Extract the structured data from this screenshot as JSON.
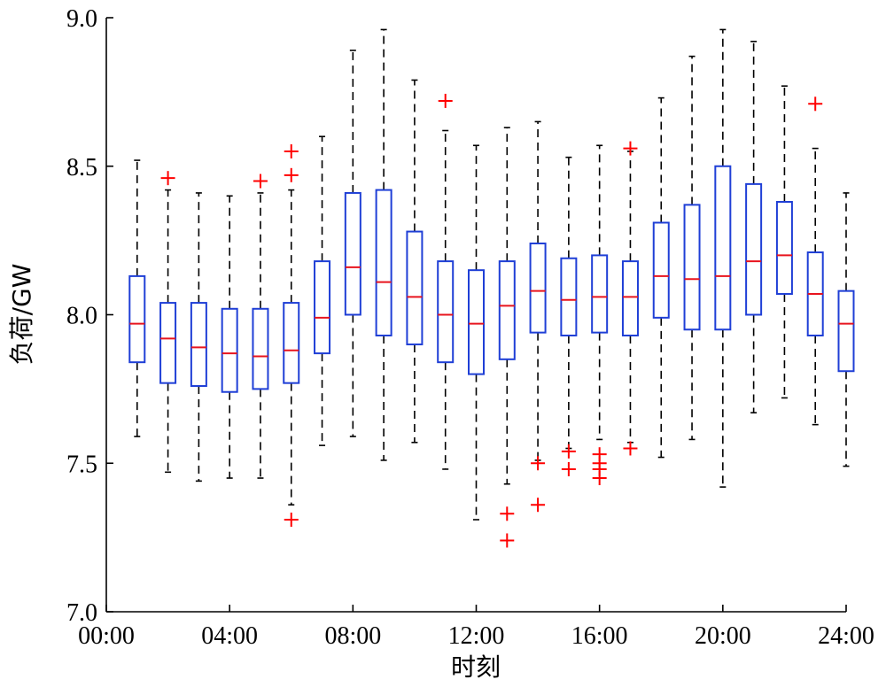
{
  "chart_data": {
    "type": "boxplot",
    "title": "",
    "xlabel": "时刻",
    "ylabel": "负荷/GW",
    "xlim": [
      0,
      24
    ],
    "ylim": [
      7.0,
      9.0
    ],
    "x_ticks": [
      0,
      4,
      8,
      12,
      16,
      20,
      24
    ],
    "x_tick_labels": [
      "00:00",
      "04:00",
      "08:00",
      "12:00",
      "16:00",
      "20:00",
      "24:00"
    ],
    "y_ticks": [
      7.0,
      7.5,
      8.0,
      8.5,
      9.0
    ],
    "y_tick_labels": [
      "7.0",
      "7.5",
      "8.0",
      "8.5",
      "9.0"
    ],
    "grid": false,
    "colors": {
      "box": "#1f3fd6",
      "median": "#e8141e",
      "whisker": "#000000",
      "outlier": "#ff0000"
    },
    "boxes": [
      {
        "x": 1,
        "whisker_low": 7.59,
        "q1": 7.84,
        "median": 7.97,
        "q3": 8.13,
        "whisker_high": 8.52,
        "outliers": []
      },
      {
        "x": 2,
        "whisker_low": 7.47,
        "q1": 7.77,
        "median": 7.92,
        "q3": 8.04,
        "whisker_high": 8.42,
        "outliers": [
          8.46
        ]
      },
      {
        "x": 3,
        "whisker_low": 7.44,
        "q1": 7.76,
        "median": 7.89,
        "q3": 8.04,
        "whisker_high": 8.41,
        "outliers": []
      },
      {
        "x": 4,
        "whisker_low": 7.45,
        "q1": 7.74,
        "median": 7.87,
        "q3": 8.02,
        "whisker_high": 8.4,
        "outliers": []
      },
      {
        "x": 5,
        "whisker_low": 7.45,
        "q1": 7.75,
        "median": 7.86,
        "q3": 8.02,
        "whisker_high": 8.41,
        "outliers": [
          8.45
        ]
      },
      {
        "x": 6,
        "whisker_low": 7.36,
        "q1": 7.77,
        "median": 7.88,
        "q3": 8.04,
        "whisker_high": 8.42,
        "outliers": [
          7.31,
          8.47,
          8.55
        ]
      },
      {
        "x": 7,
        "whisker_low": 7.56,
        "q1": 7.87,
        "median": 7.99,
        "q3": 8.18,
        "whisker_high": 8.6,
        "outliers": []
      },
      {
        "x": 8,
        "whisker_low": 7.59,
        "q1": 8.0,
        "median": 8.16,
        "q3": 8.41,
        "whisker_high": 8.89,
        "outliers": []
      },
      {
        "x": 9,
        "whisker_low": 7.51,
        "q1": 7.93,
        "median": 8.11,
        "q3": 8.42,
        "whisker_high": 8.96,
        "outliers": []
      },
      {
        "x": 10,
        "whisker_low": 7.57,
        "q1": 7.9,
        "median": 8.06,
        "q3": 8.28,
        "whisker_high": 8.79,
        "outliers": []
      },
      {
        "x": 11,
        "whisker_low": 7.48,
        "q1": 7.84,
        "median": 8.0,
        "q3": 8.18,
        "whisker_high": 8.62,
        "outliers": [
          8.72
        ]
      },
      {
        "x": 12,
        "whisker_low": 7.31,
        "q1": 7.8,
        "median": 7.97,
        "q3": 8.15,
        "whisker_high": 8.57,
        "outliers": []
      },
      {
        "x": 13,
        "whisker_low": 7.43,
        "q1": 7.85,
        "median": 8.03,
        "q3": 8.18,
        "whisker_high": 8.63,
        "outliers": [
          7.24,
          7.33
        ]
      },
      {
        "x": 14,
        "whisker_low": 7.51,
        "q1": 7.94,
        "median": 8.08,
        "q3": 8.24,
        "whisker_high": 8.65,
        "outliers": [
          7.36,
          7.5
        ]
      },
      {
        "x": 15,
        "whisker_low": 7.55,
        "q1": 7.93,
        "median": 8.05,
        "q3": 8.19,
        "whisker_high": 8.53,
        "outliers": [
          7.48,
          7.54
        ]
      },
      {
        "x": 16,
        "whisker_low": 7.58,
        "q1": 7.94,
        "median": 8.06,
        "q3": 8.2,
        "whisker_high": 8.57,
        "outliers": [
          7.45,
          7.48,
          7.5,
          7.53
        ]
      },
      {
        "x": 17,
        "whisker_low": 7.57,
        "q1": 7.93,
        "median": 8.06,
        "q3": 8.18,
        "whisker_high": 8.55,
        "outliers": [
          7.55,
          8.56
        ]
      },
      {
        "x": 18,
        "whisker_low": 7.52,
        "q1": 7.99,
        "median": 8.13,
        "q3": 8.31,
        "whisker_high": 8.73,
        "outliers": []
      },
      {
        "x": 19,
        "whisker_low": 7.58,
        "q1": 7.95,
        "median": 8.12,
        "q3": 8.37,
        "whisker_high": 8.87,
        "outliers": []
      },
      {
        "x": 20,
        "whisker_low": 7.42,
        "q1": 7.95,
        "median": 8.13,
        "q3": 8.5,
        "whisker_high": 8.96,
        "outliers": []
      },
      {
        "x": 21,
        "whisker_low": 7.67,
        "q1": 8.0,
        "median": 8.18,
        "q3": 8.44,
        "whisker_high": 8.92,
        "outliers": []
      },
      {
        "x": 22,
        "whisker_low": 7.72,
        "q1": 8.07,
        "median": 8.2,
        "q3": 8.38,
        "whisker_high": 8.77,
        "outliers": []
      },
      {
        "x": 23,
        "whisker_low": 7.63,
        "q1": 7.93,
        "median": 8.07,
        "q3": 8.21,
        "whisker_high": 8.56,
        "outliers": [
          8.71
        ]
      },
      {
        "x": 24,
        "whisker_low": 7.49,
        "q1": 7.81,
        "median": 7.97,
        "q3": 8.08,
        "whisker_high": 8.41,
        "outliers": []
      }
    ]
  }
}
